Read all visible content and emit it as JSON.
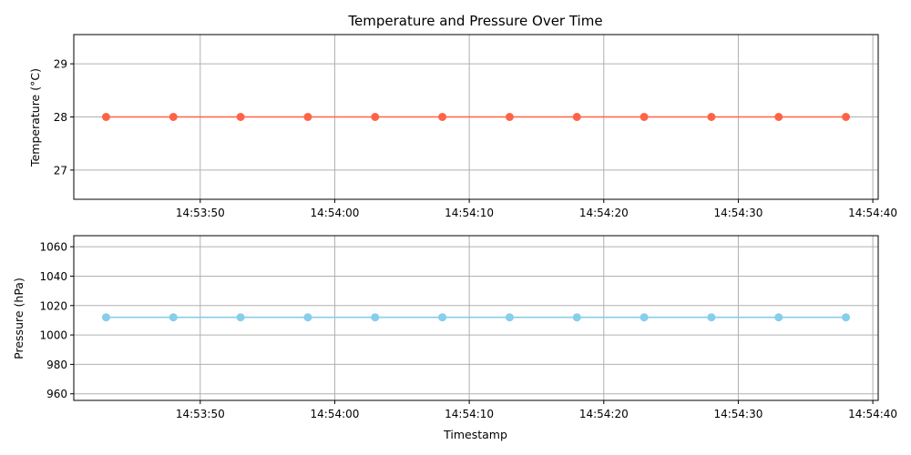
{
  "chart_data": [
    {
      "type": "line",
      "title": "Temperature and Pressure Over Time",
      "xlabel": "",
      "ylabel": "Temperature (°C)",
      "x_time_s": [
        "14:53:43",
        "14:53:48",
        "14:53:53",
        "14:53:58",
        "14:54:03",
        "14:54:08",
        "14:54:13",
        "14:54:18",
        "14:54:23",
        "14:54:28",
        "14:54:33",
        "14:54:38"
      ],
      "xticks": [
        "14:53:50",
        "14:54:00",
        "14:54:10",
        "14:54:20",
        "14:54:30",
        "14:54:40"
      ],
      "yticks": [
        27,
        28,
        29
      ],
      "ylim": [
        26.45,
        29.55
      ],
      "xlim": [
        "14:53:40.6",
        "14:54:40.4"
      ],
      "series": [
        {
          "name": "",
          "color": "#FF6347",
          "values": [
            28,
            28,
            28,
            28,
            28,
            28,
            28,
            28,
            28,
            28,
            28,
            28
          ]
        }
      ],
      "grid": true
    },
    {
      "type": "line",
      "title": "",
      "xlabel": "Timestamp",
      "ylabel": "Pressure (hPa)",
      "x_time_s": [
        "14:53:43",
        "14:53:48",
        "14:53:53",
        "14:53:58",
        "14:54:03",
        "14:54:08",
        "14:54:13",
        "14:54:18",
        "14:54:23",
        "14:54:28",
        "14:54:33",
        "14:54:38"
      ],
      "xticks": [
        "14:53:50",
        "14:54:00",
        "14:54:10",
        "14:54:20",
        "14:54:30",
        "14:54:40"
      ],
      "yticks": [
        960,
        980,
        1000,
        1020,
        1040,
        1060
      ],
      "ylim": [
        955.5,
        1067.5
      ],
      "xlim": [
        "14:53:40.6",
        "14:54:40.4"
      ],
      "series": [
        {
          "name": "",
          "color": "#87CEEB",
          "values": [
            1012,
            1012,
            1012,
            1012,
            1012,
            1012,
            1012,
            1012,
            1012,
            1012,
            1012,
            1012
          ]
        }
      ],
      "grid": true
    }
  ]
}
